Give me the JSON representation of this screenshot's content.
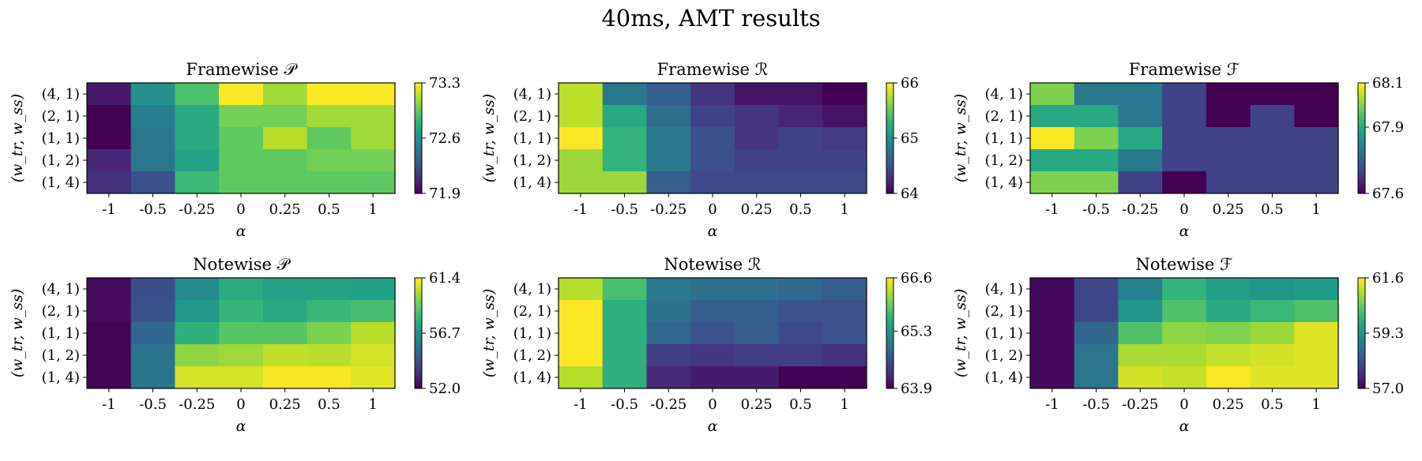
{
  "figure": {
    "title": "40ms, AMT results"
  },
  "chart_data": [
    {
      "type": "heatmap",
      "title": "Framewise 𝒫",
      "xlabel": "α",
      "ylabel": "(w_tr, w_ss)",
      "x_categories": [
        "-1",
        "-0.5",
        "-0.25",
        "0",
        "0.25",
        "0.5",
        "1"
      ],
      "y_categories": [
        "(4, 1)",
        "(2, 1)",
        "(1, 1)",
        "(1, 2)",
        "(1, 4)"
      ],
      "colorbar": {
        "min": 71.9,
        "max": 73.3,
        "ticks": [
          71.9,
          72.6,
          73.3
        ]
      },
      "values": [
        [
          72.0,
          72.6,
          72.9,
          73.3,
          73.1,
          73.3,
          73.3
        ],
        [
          71.9,
          72.5,
          72.75,
          73.0,
          73.0,
          73.1,
          73.1
        ],
        [
          71.9,
          72.45,
          72.75,
          72.95,
          73.15,
          72.95,
          73.1
        ],
        [
          72.05,
          72.45,
          72.7,
          72.95,
          72.95,
          73.0,
          73.0
        ],
        [
          72.1,
          72.25,
          72.85,
          72.95,
          72.95,
          72.95,
          72.95
        ]
      ]
    },
    {
      "type": "heatmap",
      "title": "Framewise ℛ",
      "xlabel": "α",
      "ylabel": "(w_tr, w_ss)",
      "x_categories": [
        "-1",
        "-0.5",
        "-0.25",
        "0",
        "0.25",
        "0.5",
        "1"
      ],
      "y_categories": [
        "(4, 1)",
        "(2, 1)",
        "(1, 1)",
        "(1, 2)",
        "(1, 4)"
      ],
      "colorbar": {
        "min": 64,
        "max": 66,
        "ticks": [
          64,
          65,
          66
        ]
      },
      "values": [
        [
          65.8,
          64.8,
          64.6,
          64.3,
          64.1,
          64.1,
          64.0
        ],
        [
          65.8,
          65.2,
          64.7,
          64.4,
          64.3,
          64.2,
          64.1
        ],
        [
          66.0,
          65.3,
          64.8,
          64.5,
          64.3,
          64.4,
          64.35
        ],
        [
          65.7,
          65.3,
          64.8,
          64.5,
          64.4,
          64.4,
          64.4
        ],
        [
          65.7,
          65.7,
          64.6,
          64.45,
          64.45,
          64.45,
          64.45
        ]
      ]
    },
    {
      "type": "heatmap",
      "title": "Framewise ℱ",
      "xlabel": "α",
      "ylabel": "(w_tr, w_ss)",
      "x_categories": [
        "-1",
        "-0.5",
        "-0.25",
        "0",
        "0.25",
        "0.5",
        "1"
      ],
      "y_categories": [
        "(4, 1)",
        "(2, 1)",
        "(1, 1)",
        "(1, 2)",
        "(1, 4)"
      ],
      "colorbar": {
        "min": 67.6,
        "max": 68.1,
        "ticks": [
          67.6,
          67.9,
          68.1
        ]
      },
      "values": [
        [
          68.0,
          67.8,
          67.8,
          67.7,
          67.6,
          67.6,
          67.6
        ],
        [
          67.9,
          67.9,
          67.8,
          67.7,
          67.6,
          67.7,
          67.6
        ],
        [
          68.1,
          68.0,
          67.9,
          67.7,
          67.7,
          67.7,
          67.7
        ],
        [
          67.9,
          67.9,
          67.8,
          67.7,
          67.7,
          67.7,
          67.7
        ],
        [
          68.0,
          68.0,
          67.7,
          67.6,
          67.7,
          67.7,
          67.7
        ]
      ]
    },
    {
      "type": "heatmap",
      "title": "Notewise 𝒫",
      "xlabel": "α",
      "ylabel": "(w_tr, w_ss)",
      "x_categories": [
        "-1",
        "-0.5",
        "-0.25",
        "0",
        "0.25",
        "0.5",
        "1"
      ],
      "y_categories": [
        "(4, 1)",
        "(2, 1)",
        "(1, 1)",
        "(1, 2)",
        "(1, 4)"
      ],
      "colorbar": {
        "min": 52.0,
        "max": 61.4,
        "ticks": [
          52.0,
          56.7,
          61.4
        ]
      },
      "values": [
        [
          52.3,
          54.3,
          56.5,
          57.8,
          57.4,
          57.4,
          57.3
        ],
        [
          52.3,
          54.4,
          57.0,
          58.2,
          57.6,
          58.3,
          58.6
        ],
        [
          52.1,
          55.1,
          58.0,
          58.9,
          58.9,
          59.5,
          60.4
        ],
        [
          52.1,
          55.6,
          59.8,
          60.0,
          60.5,
          60.4,
          60.8
        ],
        [
          52.1,
          55.6,
          60.8,
          60.8,
          61.3,
          61.3,
          61.0
        ]
      ]
    },
    {
      "type": "heatmap",
      "title": "Notewise ℛ",
      "xlabel": "α",
      "ylabel": "(w_tr, w_ss)",
      "x_categories": [
        "-1",
        "-0.5",
        "-0.25",
        "0",
        "0.25",
        "0.5",
        "1"
      ],
      "y_categories": [
        "(4, 1)",
        "(2, 1)",
        "(1, 1)",
        "(1, 2)",
        "(1, 4)"
      ],
      "colorbar": {
        "min": 63.9,
        "max": 66.6,
        "ticks": [
          63.9,
          65.3,
          66.6
        ]
      },
      "values": [
        [
          66.3,
          65.8,
          65.0,
          64.9,
          64.9,
          64.8,
          64.7
        ],
        [
          66.6,
          65.6,
          64.9,
          64.7,
          64.7,
          64.6,
          64.6
        ],
        [
          66.6,
          65.6,
          64.8,
          64.6,
          64.7,
          64.5,
          64.6
        ],
        [
          66.6,
          65.6,
          64.4,
          64.35,
          64.4,
          64.4,
          64.3
        ],
        [
          66.3,
          65.6,
          64.2,
          64.1,
          64.1,
          63.9,
          63.9
        ]
      ]
    },
    {
      "type": "heatmap",
      "title": "Notewise ℱ",
      "xlabel": "α",
      "ylabel": "(w_tr, w_ss)",
      "x_categories": [
        "-1",
        "-0.5",
        "-0.25",
        "0",
        "0.25",
        "0.5",
        "1"
      ],
      "y_categories": [
        "(4, 1)",
        "(2, 1)",
        "(1, 1)",
        "(1, 2)",
        "(1, 4)"
      ],
      "colorbar": {
        "min": 57.0,
        "max": 61.6,
        "ticks": [
          57.0,
          59.3,
          61.6
        ]
      },
      "values": [
        [
          57.1,
          58.0,
          59.0,
          60.0,
          59.6,
          59.4,
          59.5
        ],
        [
          57.1,
          58.0,
          59.4,
          60.3,
          59.8,
          60.1,
          60.3
        ],
        [
          57.1,
          58.5,
          60.3,
          60.8,
          60.7,
          60.9,
          61.4
        ],
        [
          57.1,
          58.8,
          61.0,
          61.0,
          61.2,
          61.3,
          61.4
        ],
        [
          57.1,
          58.8,
          61.3,
          61.2,
          61.6,
          61.4,
          61.4
        ]
      ]
    }
  ]
}
